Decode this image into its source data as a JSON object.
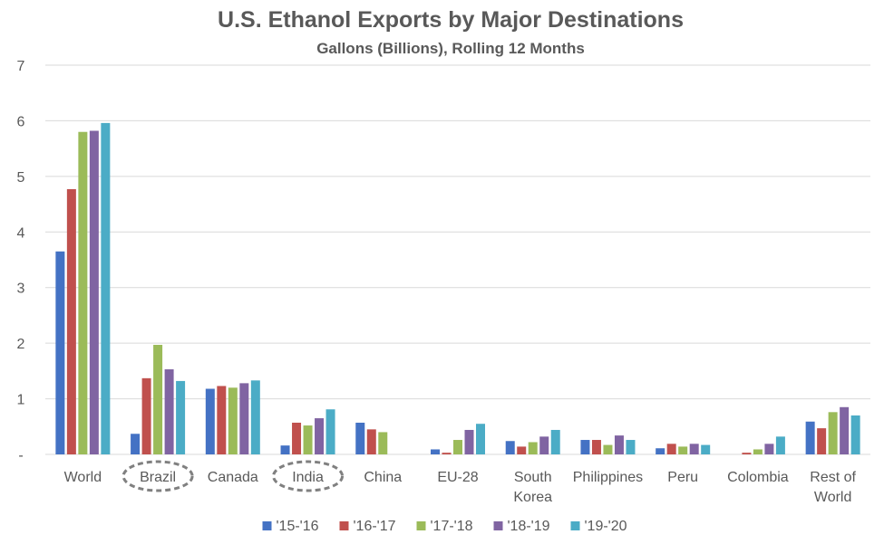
{
  "chart_data": {
    "type": "bar",
    "title": "U.S. Ethanol Exports by Major Destinations",
    "subtitle": "Gallons (Billions), Rolling 12 Months",
    "xlabel": "",
    "ylabel": "",
    "ylim": [
      0,
      7
    ],
    "yticks": [
      "-",
      "1",
      "2",
      "3",
      "4",
      "5",
      "6",
      "7"
    ],
    "grid": true,
    "legend_position": "bottom",
    "categories": [
      [
        "World"
      ],
      [
        "Brazil"
      ],
      [
        "Canada"
      ],
      [
        "India"
      ],
      [
        "China"
      ],
      [
        "EU-28"
      ],
      [
        "South",
        "Korea"
      ],
      [
        "Philippines"
      ],
      [
        "Peru"
      ],
      [
        "Colombia"
      ],
      [
        "Rest of",
        "World"
      ]
    ],
    "highlighted_categories": [
      "Brazil",
      "India"
    ],
    "series": [
      {
        "name": "'15-'16",
        "color": "#4472C4",
        "values": [
          3.65,
          0.37,
          1.18,
          0.16,
          0.57,
          0.09,
          0.24,
          0.26,
          0.11,
          0.0,
          0.59
        ]
      },
      {
        "name": "'16-'17",
        "color": "#C0504D",
        "values": [
          4.77,
          1.37,
          1.23,
          0.57,
          0.45,
          0.03,
          0.14,
          0.26,
          0.19,
          0.03,
          0.47
        ]
      },
      {
        "name": "'17-'18",
        "color": "#9BBB59",
        "values": [
          5.8,
          1.97,
          1.2,
          0.52,
          0.4,
          0.26,
          0.22,
          0.17,
          0.14,
          0.09,
          0.76
        ]
      },
      {
        "name": "'18-'19",
        "color": "#8064A2",
        "values": [
          5.82,
          1.53,
          1.28,
          0.65,
          0.0,
          0.44,
          0.32,
          0.34,
          0.19,
          0.19,
          0.85
        ]
      },
      {
        "name": "'19-'20",
        "color": "#4BACC6",
        "values": [
          5.96,
          1.32,
          1.33,
          0.81,
          0.0,
          0.55,
          0.44,
          0.26,
          0.17,
          0.32,
          0.7
        ]
      }
    ]
  }
}
